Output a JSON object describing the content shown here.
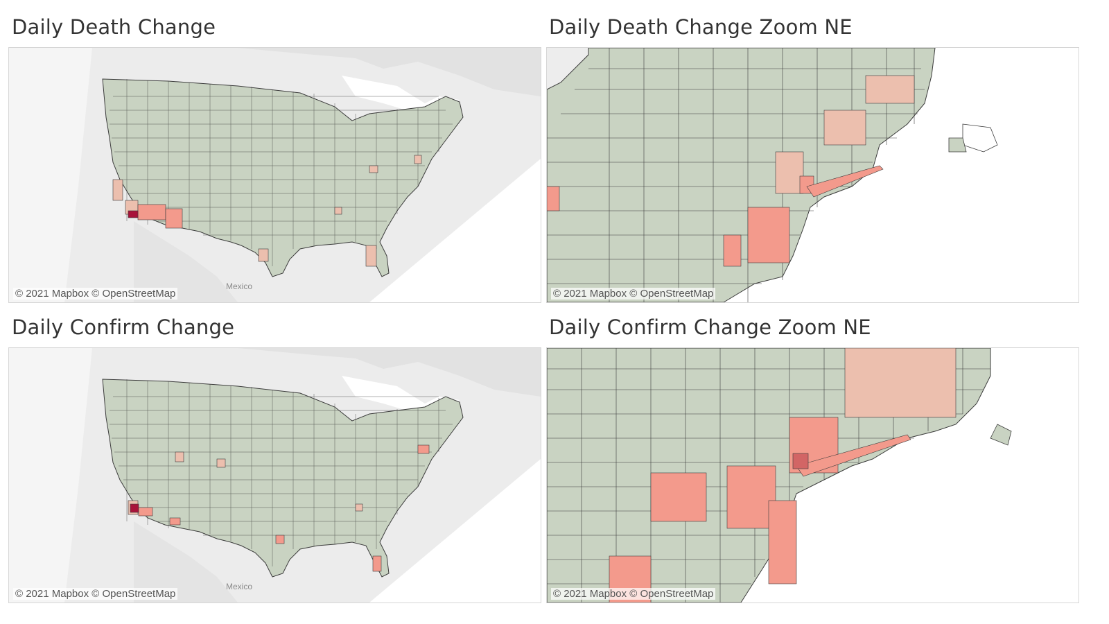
{
  "dashboard": {
    "panels": [
      {
        "id": "death-us",
        "title": "Daily Death Change",
        "attribution": "© 2021 Mapbox © OpenStreetMap",
        "place_label": "Mexico"
      },
      {
        "id": "death-ne",
        "title": "Daily Death Change Zoom NE",
        "attribution": "© 2021 Mapbox © OpenStreetMap"
      },
      {
        "id": "confirm-us",
        "title": "Daily Confirm Change",
        "attribution": "© 2021 Mapbox © OpenStreetMap",
        "place_label": "Mexico"
      },
      {
        "id": "confirm-ne",
        "title": "Daily Confirm Change Zoom NE",
        "attribution": "© 2021 Mapbox © OpenStreetMap"
      }
    ]
  },
  "colors": {
    "low": "#c9d3c2",
    "mid": "#ecbfae",
    "high": "#f39a8c",
    "max": "#a8123a",
    "county_border": "#3b3b3b",
    "basemap_land": "#e8e8e8",
    "basemap_water": "#ffffff"
  },
  "map_type": "choropleth (county-level, diverging green-to-red)"
}
